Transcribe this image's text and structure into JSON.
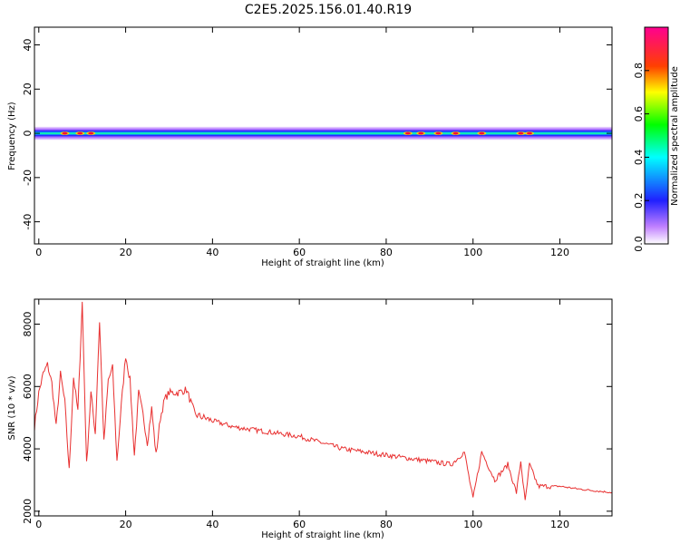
{
  "figure_title": "C2E5.2025.156.01.40.R19",
  "colors": {
    "snr_line": "#e83030",
    "axes": "#000000",
    "background": "#ffffff"
  },
  "colorbar": {
    "label": "Normalized spectral amplitude",
    "ticks": [
      "0.0",
      "0.2",
      "0.4",
      "0.6",
      "0.8"
    ],
    "range": [
      0,
      1
    ],
    "colormap": "rainbow (white-purple-blue-cyan-green-yellow-red-magenta)"
  },
  "chart_data": [
    {
      "type": "heatmap",
      "xlabel": "Height of straight line (km)",
      "ylabel": "Frequency (Hz)",
      "xlim": [
        -1,
        132
      ],
      "ylim": [
        -50,
        48
      ],
      "x_ticks": [
        "0",
        "20",
        "40",
        "60",
        "80",
        "100",
        "120"
      ],
      "y_ticks": [
        "-40",
        "-20",
        "0",
        "20",
        "40"
      ],
      "description_band": {
        "center_hz": 0,
        "half_width_hz": 3
      },
      "hotspots_km": [
        6,
        9.5,
        12,
        85,
        88,
        92,
        96,
        102,
        111,
        113
      ],
      "grid": false
    },
    {
      "type": "line",
      "xlabel": "Height of straight line (km)",
      "ylabel": "SNR (10 * v/v)",
      "xlim": [
        -1,
        132
      ],
      "ylim": [
        1850,
        8800
      ],
      "x_ticks": [
        "0",
        "20",
        "40",
        "60",
        "80",
        "100",
        "120"
      ],
      "y_ticks": [
        "2000",
        "4000",
        "6000",
        "8000"
      ],
      "series": [
        {
          "x": [
            -1,
            0,
            1,
            2,
            3,
            4,
            5,
            6,
            7,
            8,
            9,
            10,
            11,
            12,
            13,
            14,
            15,
            16,
            17,
            18,
            19,
            20,
            21,
            22,
            23,
            24,
            25,
            26,
            27,
            28,
            29,
            30,
            32,
            34,
            36,
            38,
            40,
            45,
            50,
            55,
            60,
            65,
            70,
            75,
            80,
            85,
            90,
            95,
            98,
            100,
            102,
            105,
            108,
            110,
            111,
            112,
            113,
            115,
            120,
            125,
            132
          ],
          "y": [
            4700,
            5800,
            6400,
            6700,
            6100,
            4700,
            6400,
            5500,
            3300,
            6300,
            5200,
            8700,
            3500,
            5800,
            4500,
            8100,
            4200,
            6200,
            6600,
            3600,
            5400,
            7000,
            6200,
            3800,
            5800,
            5100,
            4200,
            5300,
            3800,
            5000,
            5600,
            5800,
            5800,
            5900,
            5100,
            5000,
            4900,
            4700,
            4600,
            4500,
            4400,
            4200,
            4000,
            3900,
            3800,
            3700,
            3600,
            3500,
            3900,
            2400,
            3900,
            3000,
            3500,
            2600,
            3600,
            2300,
            3500,
            2800,
            2800,
            2700,
            2600
          ]
        }
      ]
    }
  ]
}
